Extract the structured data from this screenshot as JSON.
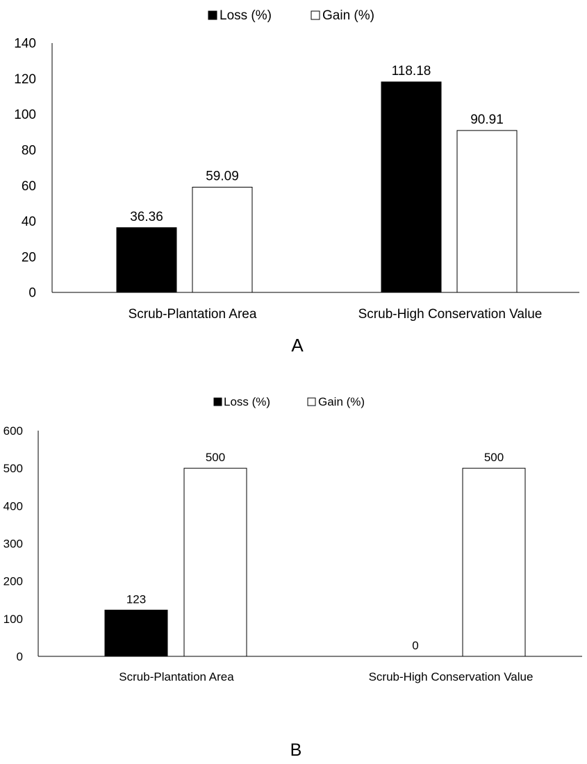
{
  "chart_data": [
    {
      "type": "bar",
      "panel_label": "A",
      "categories": [
        "Scrub-Plantation Area",
        "Scrub-High Conservation Value"
      ],
      "series": [
        {
          "name": "Loss (%)",
          "values": [
            36.36,
            118.18
          ],
          "labels": [
            "36.36",
            "118.18"
          ],
          "color": "#000000"
        },
        {
          "name": "Gain (%)",
          "values": [
            59.09,
            90.91
          ],
          "labels": [
            "59.09",
            "90.91"
          ],
          "color": "#ffffff"
        }
      ],
      "ylim": [
        0,
        140
      ],
      "yticks": [
        "0",
        "20",
        "40",
        "60",
        "80",
        "100",
        "120",
        "140"
      ],
      "ytick_values": [
        0,
        20,
        40,
        60,
        80,
        100,
        120,
        140
      ],
      "grid": false,
      "legend_position": "top-center"
    },
    {
      "type": "bar",
      "panel_label": "B",
      "categories": [
        "Scrub-Plantation Area",
        "Scrub-High Conservation Value"
      ],
      "series": [
        {
          "name": "Loss (%)",
          "values": [
            123,
            0
          ],
          "labels": [
            "123",
            "0"
          ],
          "color": "#000000"
        },
        {
          "name": "Gain (%)",
          "values": [
            500,
            500
          ],
          "labels": [
            "500",
            "500"
          ],
          "color": "#ffffff"
        }
      ],
      "ylim": [
        0,
        600
      ],
      "yticks": [
        "0",
        "100",
        "200",
        "300",
        "400",
        "500",
        "600"
      ],
      "ytick_values": [
        0,
        100,
        200,
        300,
        400,
        500,
        600
      ],
      "grid": false,
      "legend_position": "top-center"
    }
  ]
}
